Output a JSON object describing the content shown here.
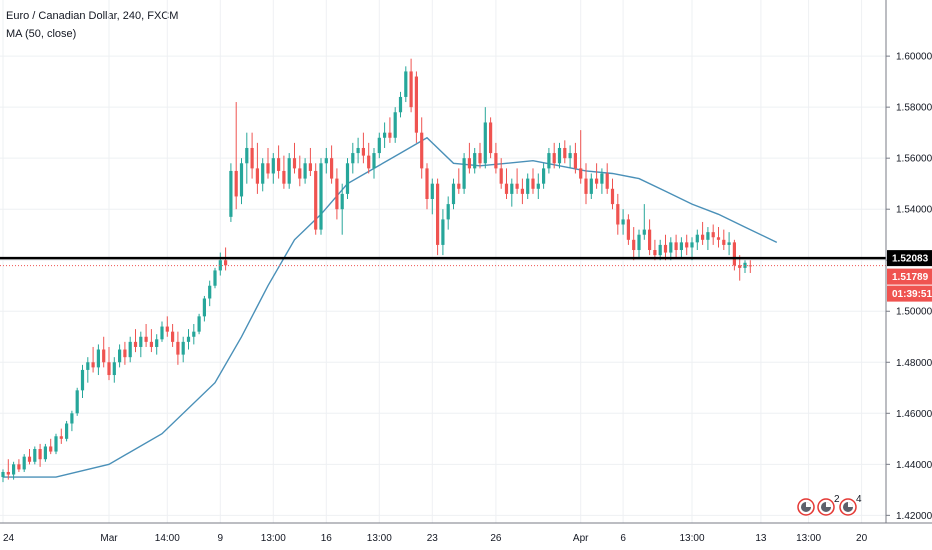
{
  "header": {
    "symbol_title": "Euro / Canadian Dollar, 240, FXCM",
    "indicator_label": "MA (50, close)"
  },
  "colors": {
    "up": "#26a69a",
    "down": "#ef5350",
    "ma_line": "#4a90b8",
    "support_line": "#000000",
    "price_line": "#ef5350",
    "grid": "#eef0f3",
    "axis_border": "#787b86"
  },
  "price_tags": {
    "support": "1.52083",
    "last_price": "1.51789",
    "countdown": "01:39:51"
  },
  "event_badges": [
    {
      "icon": "earnings-flag-icon",
      "count": ""
    },
    {
      "icon": "earnings-flag-icon",
      "count": "2"
    },
    {
      "icon": "earnings-flag-icon",
      "count": "4"
    }
  ],
  "chart_data": {
    "type": "candlestick",
    "title": "Euro / Canadian Dollar, 240, FXCM",
    "ylim": [
      1.417,
      1.622
    ],
    "y_ticks": [
      "1.60000",
      "1.58000",
      "1.56000",
      "1.54000",
      "1.52000",
      "1.50000",
      "1.48000",
      "1.46000",
      "1.44000",
      "1.42000"
    ],
    "x_ticks": [
      "24",
      "Mar",
      "14:00",
      "9",
      "13:00",
      "16",
      "13:00",
      "23",
      "26",
      "Apr",
      "6",
      "13:00",
      "13",
      "13:00",
      "20"
    ],
    "horizontal_lines": [
      {
        "name": "support",
        "value": 1.52083,
        "style": "solid"
      },
      {
        "name": "last price",
        "value": 1.51789,
        "style": "dotted"
      }
    ],
    "ohlc": [
      [
        1.435,
        1.438,
        1.433,
        1.437
      ],
      [
        1.437,
        1.442,
        1.434,
        1.436
      ],
      [
        1.436,
        1.441,
        1.434,
        1.44
      ],
      [
        1.44,
        1.442,
        1.437,
        1.438
      ],
      [
        1.438,
        1.444,
        1.437,
        1.443
      ],
      [
        1.443,
        1.446,
        1.44,
        1.441
      ],
      [
        1.441,
        1.447,
        1.44,
        1.446
      ],
      [
        1.446,
        1.448,
        1.439,
        1.442
      ],
      [
        1.442,
        1.448,
        1.441,
        1.447
      ],
      [
        1.447,
        1.45,
        1.444,
        1.445
      ],
      [
        1.445,
        1.452,
        1.444,
        1.451
      ],
      [
        1.451,
        1.454,
        1.448,
        1.45
      ],
      [
        1.45,
        1.457,
        1.449,
        1.456
      ],
      [
        1.456,
        1.461,
        1.453,
        1.46
      ],
      [
        1.46,
        1.47,
        1.459,
        1.469
      ],
      [
        1.469,
        1.479,
        1.466,
        1.477
      ],
      [
        1.477,
        1.482,
        1.472,
        1.48
      ],
      [
        1.48,
        1.486,
        1.476,
        1.478
      ],
      [
        1.478,
        1.487,
        1.475,
        1.485
      ],
      [
        1.485,
        1.49,
        1.478,
        1.48
      ],
      [
        1.48,
        1.486,
        1.473,
        1.475
      ],
      [
        1.475,
        1.482,
        1.472,
        1.48
      ],
      [
        1.48,
        1.487,
        1.478,
        1.485
      ],
      [
        1.485,
        1.488,
        1.479,
        1.482
      ],
      [
        1.482,
        1.49,
        1.48,
        1.488
      ],
      [
        1.488,
        1.493,
        1.484,
        1.486
      ],
      [
        1.486,
        1.492,
        1.482,
        1.49
      ],
      [
        1.49,
        1.495,
        1.486,
        1.488
      ],
      [
        1.488,
        1.493,
        1.484,
        1.486
      ],
      [
        1.486,
        1.491,
        1.483,
        1.489
      ],
      [
        1.489,
        1.496,
        1.488,
        1.494
      ],
      [
        1.494,
        1.498,
        1.49,
        1.492
      ],
      [
        1.492,
        1.495,
        1.486,
        1.488
      ],
      [
        1.488,
        1.492,
        1.479,
        1.483
      ],
      [
        1.483,
        1.49,
        1.48,
        1.488
      ],
      [
        1.488,
        1.493,
        1.485,
        1.49
      ],
      [
        1.49,
        1.495,
        1.487,
        1.492
      ],
      [
        1.492,
        1.499,
        1.491,
        1.498
      ],
      [
        1.498,
        1.506,
        1.496,
        1.505
      ],
      [
        1.505,
        1.512,
        1.502,
        1.51
      ],
      [
        1.51,
        1.517,
        1.509,
        1.516
      ],
      [
        1.516,
        1.523,
        1.514,
        1.52
      ],
      [
        1.52,
        1.525,
        1.516,
        1.518
      ],
      [
        1.537,
        1.558,
        1.535,
        1.555
      ],
      [
        1.555,
        1.582,
        1.54,
        1.545
      ],
      [
        1.545,
        1.56,
        1.542,
        1.558
      ],
      [
        1.558,
        1.57,
        1.55,
        1.564
      ],
      [
        1.564,
        1.57,
        1.552,
        1.556
      ],
      [
        1.556,
        1.566,
        1.546,
        1.55
      ],
      [
        1.55,
        1.56,
        1.547,
        1.558
      ],
      [
        1.558,
        1.564,
        1.552,
        1.554
      ],
      [
        1.554,
        1.562,
        1.55,
        1.56
      ],
      [
        1.56,
        1.565,
        1.552,
        1.555
      ],
      [
        1.555,
        1.561,
        1.548,
        1.55
      ],
      [
        1.55,
        1.562,
        1.548,
        1.56
      ],
      [
        1.56,
        1.566,
        1.554,
        1.556
      ],
      [
        1.556,
        1.561,
        1.549,
        1.552
      ],
      [
        1.552,
        1.56,
        1.55,
        1.558
      ],
      [
        1.558,
        1.564,
        1.553,
        1.555
      ],
      [
        1.555,
        1.558,
        1.53,
        1.532
      ],
      [
        1.532,
        1.56,
        1.53,
        1.558
      ],
      [
        1.558,
        1.564,
        1.554,
        1.56
      ],
      [
        1.56,
        1.565,
        1.55,
        1.552
      ],
      [
        1.552,
        1.556,
        1.536,
        1.54
      ],
      [
        1.54,
        1.55,
        1.53,
        1.546
      ],
      [
        1.546,
        1.56,
        1.544,
        1.558
      ],
      [
        1.558,
        1.566,
        1.554,
        1.562
      ],
      [
        1.562,
        1.568,
        1.558,
        1.564
      ],
      [
        1.564,
        1.57,
        1.558,
        1.561
      ],
      [
        1.561,
        1.566,
        1.554,
        1.556
      ],
      [
        1.556,
        1.564,
        1.552,
        1.562
      ],
      [
        1.562,
        1.57,
        1.56,
        1.568
      ],
      [
        1.568,
        1.574,
        1.564,
        1.57
      ],
      [
        1.57,
        1.576,
        1.566,
        1.568
      ],
      [
        1.568,
        1.58,
        1.566,
        1.578
      ],
      [
        1.578,
        1.586,
        1.576,
        1.584
      ],
      [
        1.584,
        1.596,
        1.582,
        1.594
      ],
      [
        1.594,
        1.599,
        1.578,
        1.58
      ],
      [
        1.592,
        1.594,
        1.566,
        1.57
      ],
      [
        1.57,
        1.576,
        1.552,
        1.556
      ],
      [
        1.556,
        1.558,
        1.54,
        1.544
      ],
      [
        1.544,
        1.552,
        1.538,
        1.55
      ],
      [
        1.55,
        1.552,
        1.522,
        1.526
      ],
      [
        1.526,
        1.54,
        1.522,
        1.536
      ],
      [
        1.536,
        1.545,
        1.532,
        1.542
      ],
      [
        1.542,
        1.552,
        1.54,
        1.55
      ],
      [
        1.55,
        1.556,
        1.546,
        1.548
      ],
      [
        1.548,
        1.562,
        1.546,
        1.56
      ],
      [
        1.56,
        1.566,
        1.554,
        1.556
      ],
      [
        1.556,
        1.564,
        1.554,
        1.562
      ],
      [
        1.562,
        1.566,
        1.556,
        1.558
      ],
      [
        1.558,
        1.58,
        1.556,
        1.574
      ],
      [
        1.574,
        1.576,
        1.56,
        1.562
      ],
      [
        1.562,
        1.566,
        1.554,
        1.556
      ],
      [
        1.556,
        1.56,
        1.548,
        1.55
      ],
      [
        1.55,
        1.556,
        1.544,
        1.546
      ],
      [
        1.546,
        1.552,
        1.541,
        1.55
      ],
      [
        1.55,
        1.556,
        1.546,
        1.548
      ],
      [
        1.548,
        1.552,
        1.542,
        1.546
      ],
      [
        1.546,
        1.554,
        1.544,
        1.552
      ],
      [
        1.552,
        1.556,
        1.546,
        1.548
      ],
      [
        1.548,
        1.554,
        1.544,
        1.55
      ],
      [
        1.55,
        1.558,
        1.548,
        1.556
      ],
      [
        1.556,
        1.564,
        1.554,
        1.562
      ],
      [
        1.562,
        1.566,
        1.556,
        1.558
      ],
      [
        1.558,
        1.566,
        1.556,
        1.564
      ],
      [
        1.564,
        1.567,
        1.558,
        1.56
      ],
      [
        1.56,
        1.565,
        1.556,
        1.562
      ],
      [
        1.562,
        1.566,
        1.554,
        1.556
      ],
      [
        1.556,
        1.571,
        1.55,
        1.552
      ],
      [
        1.552,
        1.558,
        1.542,
        1.546
      ],
      [
        1.546,
        1.554,
        1.544,
        1.552
      ],
      [
        1.552,
        1.558,
        1.548,
        1.55
      ],
      [
        1.55,
        1.556,
        1.546,
        1.554
      ],
      [
        1.554,
        1.558,
        1.546,
        1.548
      ],
      [
        1.548,
        1.552,
        1.54,
        1.542
      ],
      [
        1.542,
        1.546,
        1.53,
        1.534
      ],
      [
        1.534,
        1.54,
        1.53,
        1.536
      ],
      [
        1.536,
        1.538,
        1.526,
        1.528
      ],
      [
        1.528,
        1.533,
        1.52,
        1.524
      ],
      [
        1.524,
        1.532,
        1.521,
        1.53
      ],
      [
        1.53,
        1.542,
        1.528,
        1.532
      ],
      [
        1.532,
        1.536,
        1.522,
        1.524
      ],
      [
        1.524,
        1.528,
        1.52,
        1.522
      ],
      [
        1.522,
        1.528,
        1.52,
        1.526
      ],
      [
        1.526,
        1.53,
        1.52,
        1.523
      ],
      [
        1.523,
        1.529,
        1.52,
        1.527
      ],
      [
        1.527,
        1.53,
        1.521,
        1.524
      ],
      [
        1.524,
        1.529,
        1.521,
        1.527
      ],
      [
        1.527,
        1.53,
        1.522,
        1.525
      ],
      [
        1.525,
        1.529,
        1.52,
        1.527
      ],
      [
        1.527,
        1.532,
        1.524,
        1.53
      ],
      [
        1.53,
        1.535,
        1.526,
        1.528
      ],
      [
        1.528,
        1.533,
        1.524,
        1.531
      ],
      [
        1.531,
        1.534,
        1.526,
        1.529
      ],
      [
        1.529,
        1.533,
        1.525,
        1.528
      ],
      [
        1.528,
        1.532,
        1.524,
        1.526
      ],
      [
        1.526,
        1.531,
        1.522,
        1.527
      ],
      [
        1.527,
        1.528,
        1.516,
        1.518
      ],
      [
        1.518,
        1.522,
        1.512,
        1.517
      ],
      [
        1.517,
        1.52,
        1.515,
        1.519
      ],
      [
        1.518,
        1.52,
        1.515,
        1.5179
      ]
    ],
    "ma_50": [
      [
        0,
        1.435
      ],
      [
        10,
        1.435
      ],
      [
        20,
        1.44
      ],
      [
        30,
        1.452
      ],
      [
        40,
        1.472
      ],
      [
        45,
        1.49
      ],
      [
        50,
        1.51
      ],
      [
        55,
        1.528
      ],
      [
        60,
        1.538
      ],
      [
        65,
        1.55
      ],
      [
        70,
        1.556
      ],
      [
        75,
        1.562
      ],
      [
        80,
        1.568
      ],
      [
        85,
        1.558
      ],
      [
        90,
        1.557
      ],
      [
        95,
        1.558
      ],
      [
        100,
        1.559
      ],
      [
        105,
        1.557
      ],
      [
        110,
        1.555
      ],
      [
        115,
        1.554
      ],
      [
        120,
        1.552
      ],
      [
        125,
        1.547
      ],
      [
        130,
        1.542
      ],
      [
        135,
        1.538
      ],
      [
        140,
        1.533
      ],
      [
        146,
        1.527
      ]
    ]
  }
}
